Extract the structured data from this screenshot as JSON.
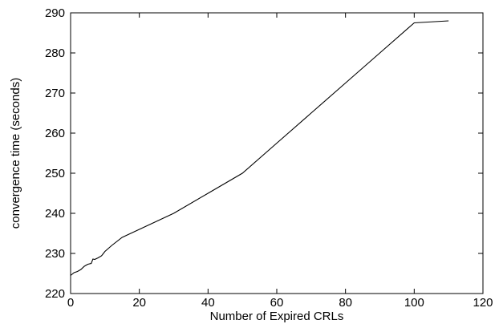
{
  "chart_data": {
    "type": "line",
    "title": "",
    "xlabel": "Number of Expired CRLs",
    "ylabel": "convergence time (seconds)",
    "xlim": [
      0,
      120
    ],
    "ylim": [
      220,
      290
    ],
    "xticks": [
      0,
      20,
      40,
      60,
      80,
      100,
      120
    ],
    "yticks": [
      220,
      230,
      240,
      250,
      260,
      270,
      280,
      290
    ],
    "xtick_labels": [
      "0",
      "20",
      "40",
      "60",
      "80",
      "100",
      "120"
    ],
    "ytick_labels": [
      "220",
      "230",
      "240",
      "250",
      "260",
      "270",
      "280",
      "290"
    ],
    "grid": false,
    "legend": "none",
    "series": [
      {
        "color": "#000000",
        "x": [
          0,
          1,
          2,
          3,
          4,
          5,
          6,
          6.5,
          7,
          8,
          9,
          10,
          12,
          15,
          20,
          25,
          30,
          40,
          50,
          60,
          70,
          80,
          90,
          100,
          110
        ],
        "y": [
          224.5,
          225.2,
          225.5,
          226.0,
          226.8,
          227.3,
          227.5,
          228.6,
          228.5,
          228.9,
          229.4,
          230.5,
          232.0,
          234.0,
          236.0,
          238.0,
          240.0,
          245.0,
          250.0,
          257.5,
          265.0,
          272.5,
          280.0,
          287.5,
          288.0
        ]
      }
    ]
  }
}
